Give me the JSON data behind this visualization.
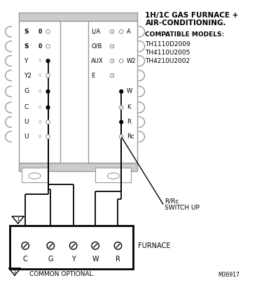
{
  "title_line1": "1H/1C GAS FURNACE +",
  "title_line2": "AIR-CONDITIONING.",
  "compatible_models_label": "COMPATIBLE MODELS:",
  "compatible_models": [
    "TH1110D2009",
    "TH4110U2005",
    "TH4210U2002"
  ],
  "left_terminals": [
    "S",
    "S",
    "Y",
    "Y2",
    "G",
    "C",
    "U",
    "U"
  ],
  "left_bold": [
    true,
    true,
    false,
    false,
    false,
    false,
    false,
    false
  ],
  "left_has_dot": [
    false,
    false,
    true,
    false,
    true,
    true,
    false,
    false
  ],
  "right_left_labels": [
    "L/A",
    "O/B",
    "AUX",
    "E",
    "",
    "",
    "",
    ""
  ],
  "right_right_labels": [
    "A",
    "",
    "W2",
    "",
    "W",
    "K",
    "R",
    "Rc"
  ],
  "right_right_dot": [
    false,
    false,
    false,
    false,
    true,
    false,
    true,
    false
  ],
  "furnace_terminals": [
    "C",
    "G",
    "Y",
    "W",
    "R"
  ],
  "switch_label_line1": "R/Rc",
  "switch_label_line2": "SWITCH UP",
  "furnace_label": "FURNACE",
  "common_label": "COMMON OPTIONAL.",
  "model_number": "M36917",
  "bg_color": "#ffffff",
  "lc": "#000000",
  "gc": "#999999",
  "lgc": "#cccccc"
}
